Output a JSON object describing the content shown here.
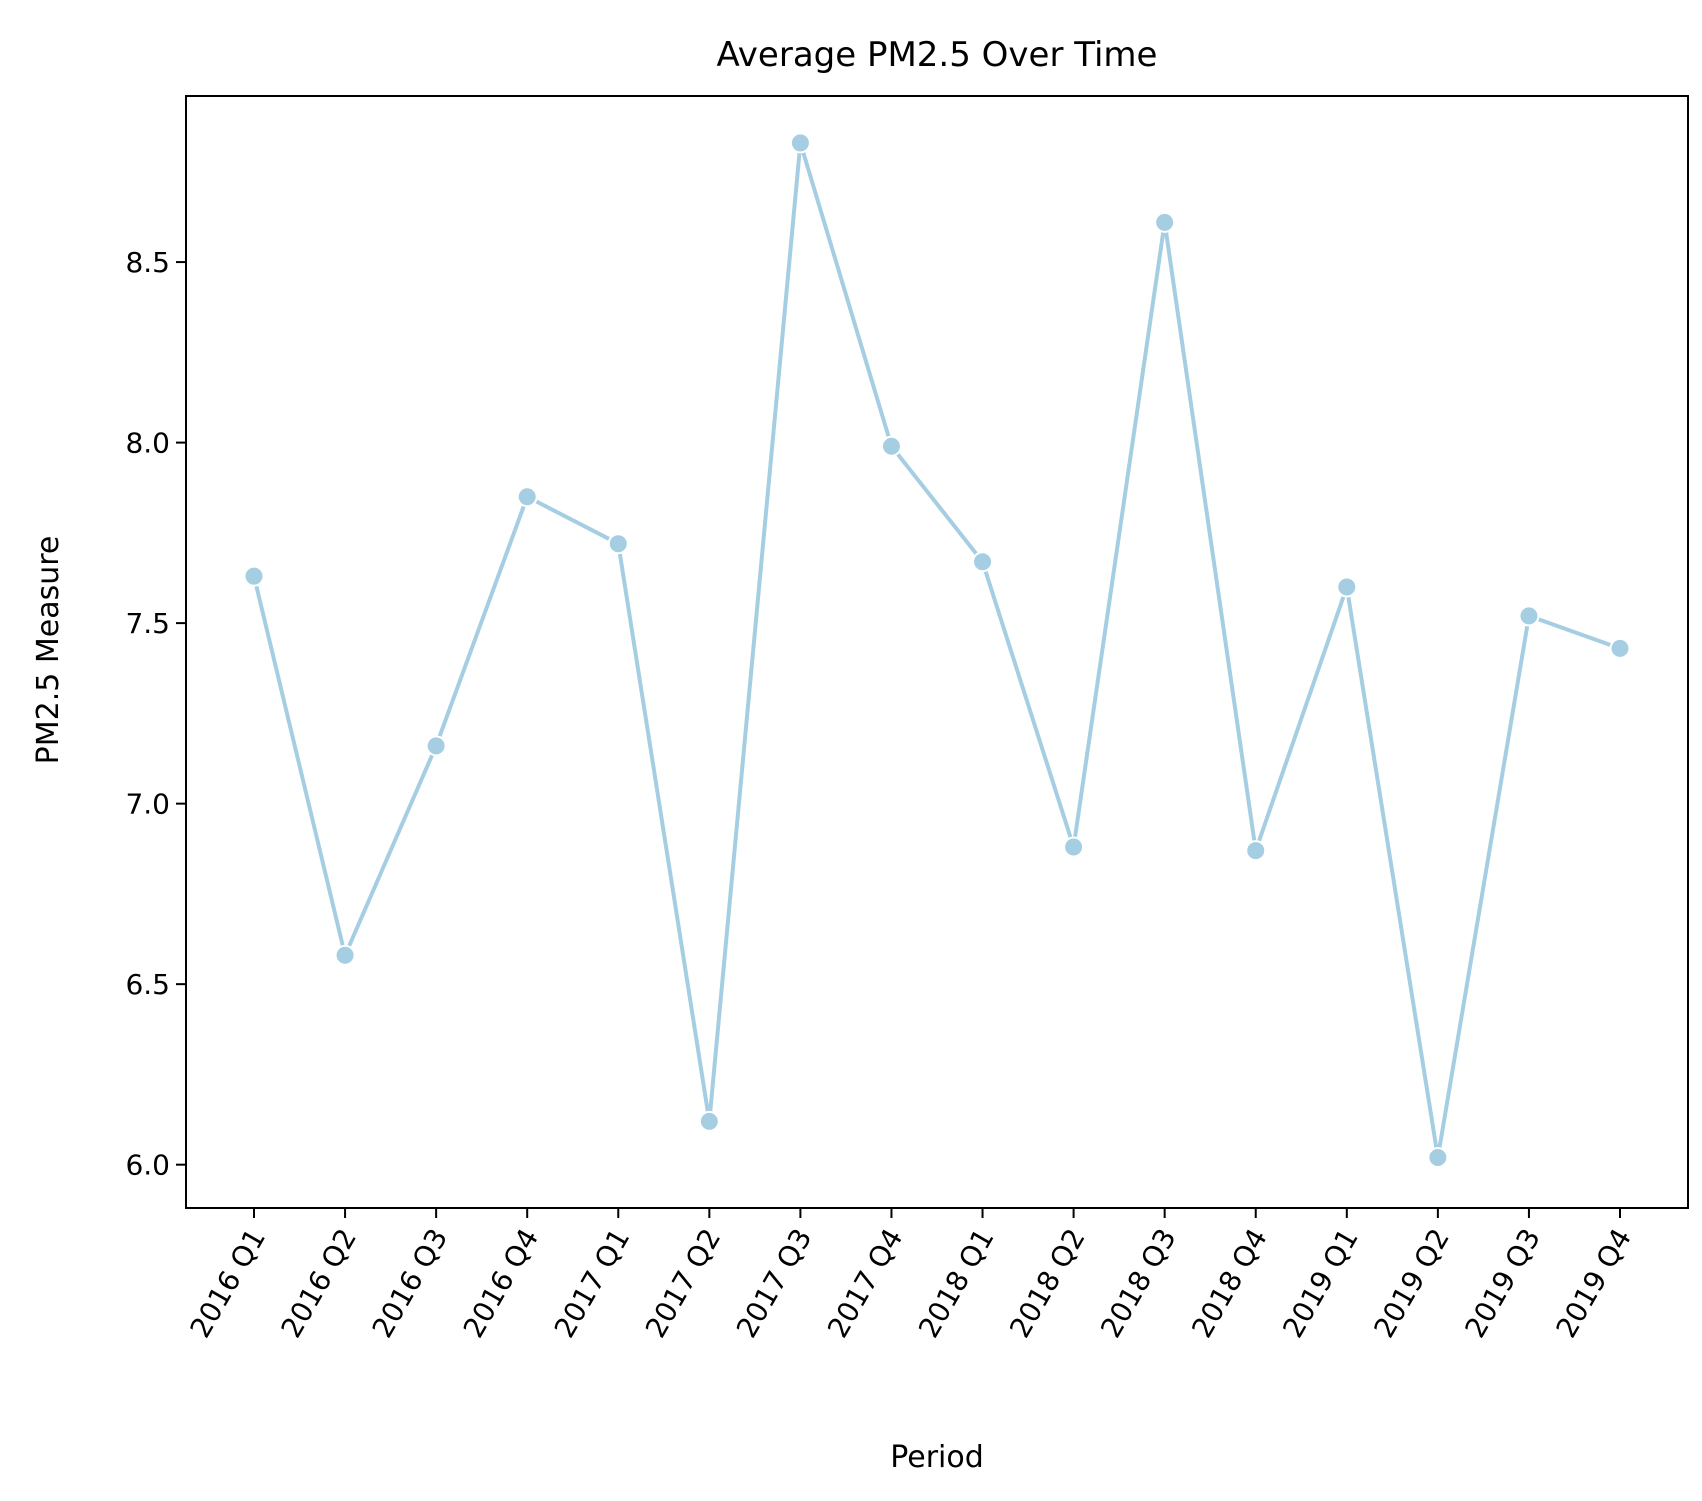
{
  "chart_data": {
    "type": "line",
    "title": "Average PM2.5 Over Time",
    "xlabel": "Period",
    "ylabel": "PM2.5 Measure",
    "categories": [
      "2016 Q1",
      "2016 Q2",
      "2016 Q3",
      "2016 Q4",
      "2017 Q1",
      "2017 Q2",
      "2017 Q3",
      "2017 Q4",
      "2018 Q1",
      "2018 Q2",
      "2018 Q3",
      "2018 Q4",
      "2019 Q1",
      "2019 Q2",
      "2019 Q3",
      "2019 Q4"
    ],
    "series": [
      {
        "values": [
          7.63,
          6.58,
          7.16,
          7.85,
          7.72,
          6.12,
          8.83,
          7.99,
          7.67,
          6.88,
          8.61,
          6.87,
          7.6,
          6.02,
          7.52,
          7.43
        ],
        "color": "#a6cee3",
        "marker": "circle"
      }
    ],
    "ylim": [
      5.88,
      8.96
    ],
    "yticks": [
      6.0,
      6.5,
      7.0,
      7.5,
      8.0,
      8.5
    ],
    "ytick_labels": [
      "6.0",
      "6.5",
      "7.0",
      "7.5",
      "8.0",
      "8.5"
    ],
    "grid": false,
    "legend": "none"
  }
}
